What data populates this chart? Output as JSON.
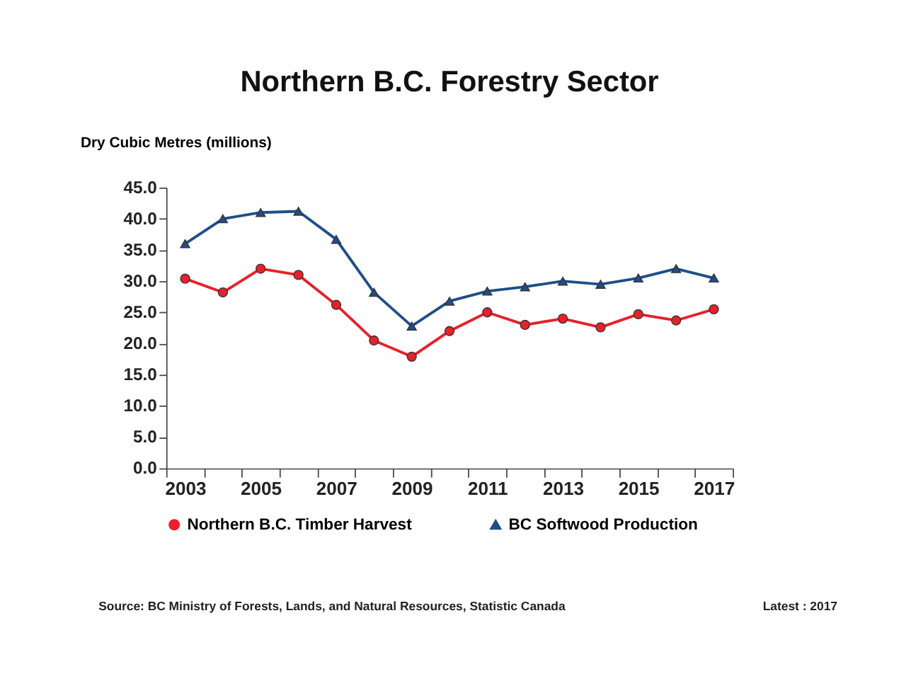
{
  "chart_data": {
    "type": "line",
    "title": "Northern B.C. Forestry Sector",
    "ylabel": "Dry Cubic Metres (millions)",
    "categories": [
      "2003",
      null,
      "2005",
      null,
      "2007",
      null,
      "2009",
      null,
      "2011",
      null,
      "2013",
      null,
      "2015",
      null,
      "2017"
    ],
    "series": [
      {
        "name": "Northern B.C. Timber Harvest",
        "color": "#e8202a",
        "marker": "circle",
        "values": [
          30.4,
          28.2,
          32.0,
          31.0,
          26.2,
          20.5,
          17.9,
          22.0,
          25.0,
          23.0,
          24.0,
          22.6,
          24.7,
          23.7,
          25.5
        ]
      },
      {
        "name": "BC Softwood Production",
        "color": "#1f4e89",
        "marker": "triangle",
        "values": [
          36.0,
          40.0,
          41.0,
          41.2,
          36.7,
          28.2,
          22.8,
          26.8,
          28.4,
          29.1,
          30.0,
          29.5,
          30.5,
          32.0,
          30.5
        ]
      }
    ],
    "ylim": [
      0,
      45
    ],
    "yticks": [
      {
        "value": 0,
        "label": "0.0"
      },
      {
        "value": 5,
        "label": "5.0"
      },
      {
        "value": 10,
        "label": "10.0"
      },
      {
        "value": 15,
        "label": "15.0"
      },
      {
        "value": 20,
        "label": "20.0"
      },
      {
        "value": 25,
        "label": "25.0"
      },
      {
        "value": 30,
        "label": "30.0"
      },
      {
        "value": 35,
        "label": "35.0"
      },
      {
        "value": 40,
        "label": "40.0"
      },
      {
        "value": 45,
        "label": "45.0"
      }
    ],
    "grid": false,
    "legend": "bottom",
    "annotations": [
      "Source: BC Ministry of Forests, Lands, and Natural Resources, Statistic Canada",
      "Latest : 2017"
    ]
  }
}
